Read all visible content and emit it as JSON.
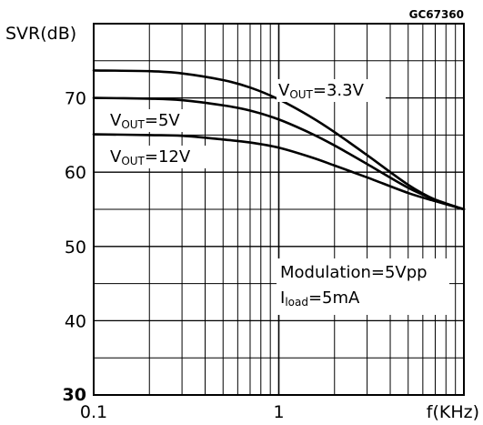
{
  "figure_id": "GC67360",
  "chart_data": {
    "type": "line",
    "ylabel": "SVR(dB)",
    "xlabel": "f(KHz)",
    "x_scale": "log",
    "xlim": [
      0.1,
      10
    ],
    "ylim": [
      30,
      80
    ],
    "grid": true,
    "x_ticks": [
      {
        "value": 0.1,
        "label": "0.1"
      },
      {
        "value": 1,
        "label": "1"
      }
    ],
    "y_ticks": [
      {
        "value": 30,
        "label": "30"
      },
      {
        "value": 40,
        "label": "40"
      },
      {
        "value": 50,
        "label": "50"
      },
      {
        "value": 60,
        "label": "60"
      },
      {
        "value": 70,
        "label": "70"
      }
    ],
    "series": [
      {
        "name": "VOUT=3.3V",
        "label_main": "V",
        "label_sub": "OUT",
        "label_rest": "=3.3V",
        "x": [
          0.1,
          0.2,
          0.3,
          0.5,
          0.7,
          1,
          1.5,
          2,
          3,
          5,
          7,
          10
        ],
        "y": [
          73.7,
          73.6,
          73.3,
          72.4,
          71.4,
          69.8,
          67.4,
          65.4,
          62.3,
          58.3,
          56.3,
          55.0
        ]
      },
      {
        "name": "VOUT=5V",
        "label_main": "V",
        "label_sub": "OUT",
        "label_rest": "=5V",
        "x": [
          0.1,
          0.2,
          0.3,
          0.5,
          0.7,
          1,
          1.5,
          2,
          3,
          5,
          7,
          10
        ],
        "y": [
          70.0,
          69.9,
          69.7,
          69.0,
          68.3,
          67.1,
          65.2,
          63.6,
          61.1,
          57.9,
          56.3,
          55.0
        ]
      },
      {
        "name": "VOUT=12V",
        "label_main": "V",
        "label_sub": "OUT",
        "label_rest": "=12V",
        "x": [
          0.1,
          0.2,
          0.3,
          0.5,
          0.7,
          1,
          1.5,
          2,
          3,
          5,
          7,
          10
        ],
        "y": [
          65.1,
          65.0,
          64.9,
          64.4,
          64.0,
          63.3,
          62.0,
          60.9,
          59.3,
          57.2,
          56.1,
          55.0
        ]
      }
    ],
    "annotation_lines": [
      {
        "main": "Modulation=5Vpp",
        "sub": "",
        "rest": ""
      },
      {
        "main": "I",
        "sub": "load",
        "rest": "=5mA"
      }
    ]
  }
}
